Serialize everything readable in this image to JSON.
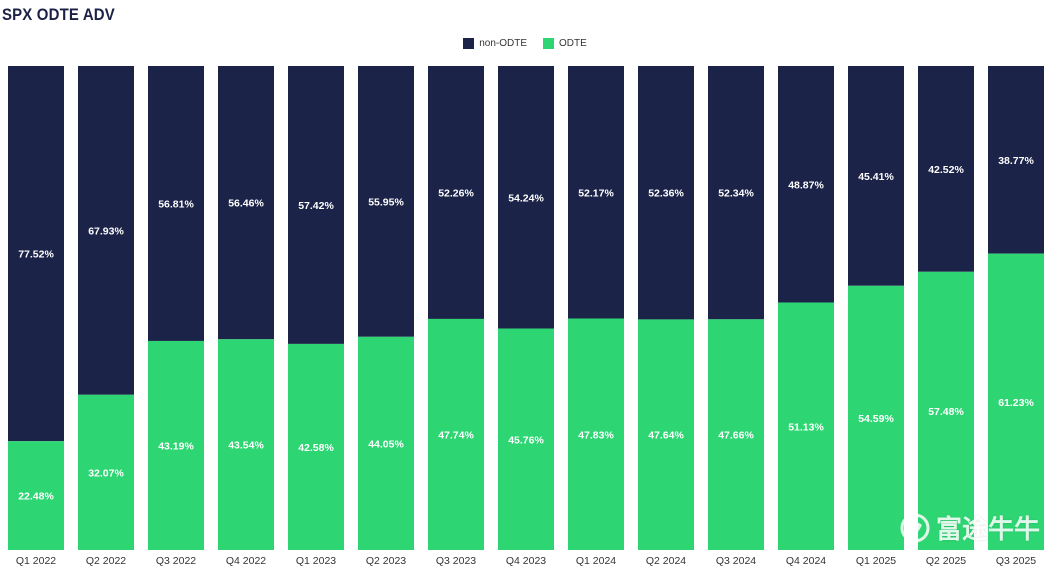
{
  "chart_data": {
    "type": "bar",
    "stacked": true,
    "normalized": true,
    "title": "SPX ODTE ADV",
    "categories": [
      "Q1 2022",
      "Q2 2022",
      "Q3 2022",
      "Q4 2022",
      "Q1 2023",
      "Q2 2023",
      "Q3 2023",
      "Q4 2023",
      "Q1 2024",
      "Q2 2024",
      "Q3 2024",
      "Q4 2024",
      "Q1 2025",
      "Q2 2025",
      "Q3 2025"
    ],
    "series": [
      {
        "name": "non-ODTE",
        "color": "#1b2348",
        "values": [
          77.52,
          67.93,
          56.81,
          56.46,
          57.42,
          55.95,
          52.26,
          54.24,
          52.17,
          52.36,
          52.34,
          48.87,
          45.41,
          42.52,
          38.77
        ],
        "labels": [
          "77.52%",
          "67.93%",
          "56.81%",
          "56.46%",
          "57.42%",
          "55.95%",
          "52.26%",
          "54.24%",
          "52.17%",
          "52.36%",
          "52.34%",
          "48.87%",
          "45.41%",
          "42.52%",
          "38.77%"
        ]
      },
      {
        "name": "ODTE",
        "color": "#2dd672",
        "values": [
          22.48,
          32.07,
          43.19,
          43.54,
          42.58,
          44.05,
          47.74,
          45.76,
          47.83,
          47.64,
          47.66,
          51.13,
          54.59,
          57.48,
          61.23
        ],
        "labels": [
          "22.48%",
          "32.07%",
          "43.19%",
          "43.54%",
          "42.58%",
          "44.05%",
          "47.74%",
          "45.76%",
          "47.83%",
          "47.64%",
          "47.66%",
          "51.13%",
          "54.59%",
          "57.48%",
          "61.23%"
        ]
      }
    ],
    "ylim": [
      0,
      100
    ],
    "grid": false,
    "legend_position": "top-center"
  },
  "watermark": {
    "text": "富途牛牛"
  }
}
